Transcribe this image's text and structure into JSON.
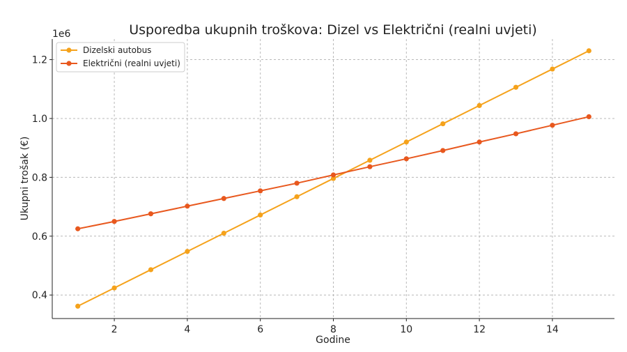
{
  "chart_data": {
    "type": "line",
    "title": "Usporedba ukupnih troškova: Dizel vs Električni (realni uvjeti)",
    "xlabel": "Godine",
    "ylabel": "Ukupni trošak (€)",
    "y_offset_label": "1e6",
    "x": [
      1,
      2,
      3,
      4,
      5,
      6,
      7,
      8,
      9,
      10,
      11,
      12,
      13,
      14,
      15
    ],
    "xlim": [
      0.3,
      15.7
    ],
    "ylim": [
      0.32,
      1.27
    ],
    "xticks": [
      2,
      4,
      6,
      8,
      10,
      12,
      14
    ],
    "xtick_labels": [
      "2",
      "4",
      "6",
      "8",
      "10",
      "12",
      "14"
    ],
    "yticks": [
      0.4,
      0.6,
      0.8,
      1.0,
      1.2
    ],
    "ytick_labels": [
      "0.4",
      "0.6",
      "0.8",
      "1.0",
      "1.2"
    ],
    "grid": true,
    "legend_position": "top-left",
    "series": [
      {
        "name": "Dizelski autobus",
        "color": "#f5a21b",
        "values": [
          0.362,
          0.424,
          0.486,
          0.548,
          0.61,
          0.672,
          0.734,
          0.796,
          0.858,
          0.92,
          0.982,
          1.044,
          1.106,
          1.168,
          1.23
        ]
      },
      {
        "name": "Električni (realni uvjeti)",
        "color": "#e8581e",
        "values": [
          0.625,
          0.65,
          0.676,
          0.702,
          0.728,
          0.754,
          0.78,
          0.808,
          0.836,
          0.863,
          0.891,
          0.92,
          0.948,
          0.977,
          1.006
        ]
      }
    ]
  }
}
